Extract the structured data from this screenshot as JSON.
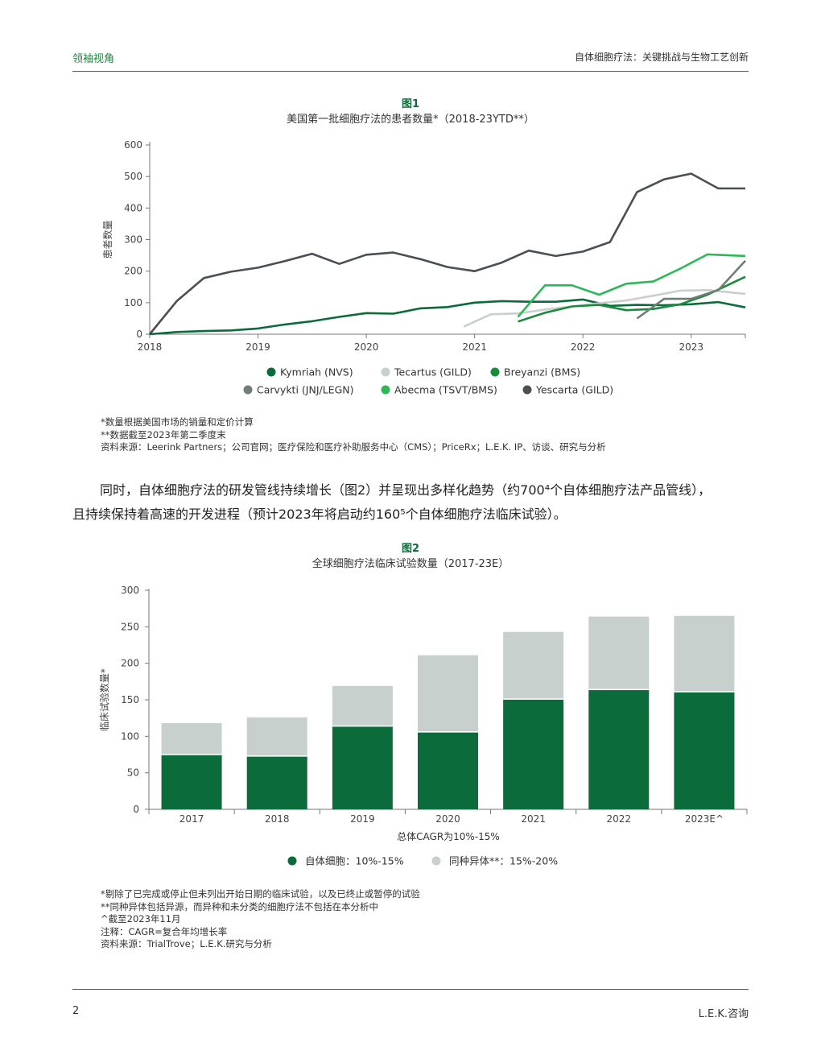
{
  "header": {
    "left": "领袖视角",
    "right": "自体细胞疗法：关键挑战与生物工艺创新"
  },
  "figure1": {
    "label": "图1",
    "title": "美国第一批细胞疗法的患者数量*（2018-23YTD**）",
    "notes": [
      "*数量根据美国市场的销量和定价计算",
      "**数据截至2023年第二季度末",
      "资料来源：Leerink Partners；公司官网；医疗保险和医疗补助服务中心（CMS）；PriceRx；L.E.K. IP、访谈、研究与分析"
    ]
  },
  "paragraph": {
    "line1": "同时，自体细胞疗法的研发管线持续增长（图2）并呈现出多样化趋势（约700⁴个自体细胞疗法产品管线），",
    "line2": "且持续保持着高速的开发进程（预计2023年将启动约160⁵个自体细胞疗法临床试验）。"
  },
  "figure2": {
    "label": "图2",
    "title": "全球细胞疗法临床试验数量（2017-23E）",
    "notes": [
      "*剔除了已完成或停止但未列出开始日期的临床试验，以及已终止或暂停的试验",
      "**同种异体包括异源，而异种和未分类的细胞疗法不包括在本分析中",
      "^截至2023年11月",
      "注释：CAGR=复合年均增长率",
      "资料来源：TrialTrove；L.E.K.研究与分析"
    ]
  },
  "footer": {
    "page": "2",
    "brand": "L.E.K.咨询"
  },
  "chart_data": [
    {
      "type": "line",
      "title": "美国第一批细胞疗法的患者数量*（2018-23YTD**）",
      "ylabel": "患者数量",
      "xlim": [
        2018,
        2023.5
      ],
      "ylim": [
        0,
        600
      ],
      "yticks": [
        0,
        100,
        200,
        300,
        400,
        500,
        600
      ],
      "xticks": [
        "2018",
        "2019",
        "2020",
        "2021",
        "2022",
        "2023"
      ],
      "series": [
        {
          "name": "Yescarta (GILD)",
          "color": "#4a4f54",
          "x": [
            2018,
            2018.25,
            2018.5,
            2018.75,
            2019,
            2019.25,
            2019.5,
            2019.75,
            2020,
            2020.25,
            2020.5,
            2020.75,
            2021,
            2021.25,
            2021.5,
            2021.75,
            2022,
            2022.25,
            2022.5,
            2022.75,
            2023,
            2023.25,
            2023.5
          ],
          "y": [
            0,
            105,
            178,
            198,
            211,
            232,
            255,
            223,
            252,
            259,
            238,
            213,
            200,
            227,
            265,
            248,
            262,
            292,
            451,
            491,
            509,
            462,
            462
          ]
        },
        {
          "name": "Kymriah (NVS)",
          "color": "#0b6b3a",
          "x": [
            2018,
            2018.25,
            2018.5,
            2018.75,
            2019,
            2019.25,
            2019.5,
            2019.75,
            2020,
            2020.25,
            2020.5,
            2020.75,
            2021,
            2021.25,
            2021.5,
            2021.75,
            2022,
            2022.25,
            2022.5,
            2022.75,
            2023,
            2023.25,
            2023.5
          ],
          "y": [
            0,
            7,
            10,
            12,
            18,
            31,
            41,
            55,
            67,
            65,
            82,
            86,
            100,
            105,
            103,
            103,
            110,
            90,
            93,
            92,
            95,
            102,
            85
          ]
        },
        {
          "name": "Tecartus (GILD)",
          "color": "#c9cfcd",
          "x": [
            2020.9,
            2021.15,
            2021.4,
            2021.65,
            2021.9,
            2022.15,
            2022.4,
            2022.65,
            2022.9,
            2023.15,
            2023.5
          ],
          "y": [
            24,
            63,
            66,
            78,
            88,
            98,
            107,
            122,
            138,
            140,
            128
          ]
        },
        {
          "name": "Breyanzi (BMS)",
          "color": "#1a8a3c",
          "x": [
            2021.4,
            2021.65,
            2021.9,
            2022.15,
            2022.4,
            2022.65,
            2022.9,
            2023.15,
            2023.5
          ],
          "y": [
            40,
            68,
            88,
            93,
            76,
            80,
            95,
            125,
            182
          ]
        },
        {
          "name": "Carvykti (JNJ/LEGN)",
          "color": "#6f7d76",
          "x": [
            2022.5,
            2022.75,
            2023,
            2023.25,
            2023.5
          ],
          "y": [
            50,
            112,
            112,
            140,
            233
          ]
        },
        {
          "name": "Abecma (TSVT/BMS)",
          "color": "#2cb857",
          "x": [
            2021.4,
            2021.65,
            2021.9,
            2022.15,
            2022.4,
            2022.65,
            2022.9,
            2023.15,
            2023.5
          ],
          "y": [
            55,
            155,
            155,
            125,
            160,
            167,
            208,
            253,
            248
          ]
        }
      ],
      "legend_order": [
        "Kymriah (NVS)",
        "Tecartus (GILD)",
        "Breyanzi (BMS)",
        "Carvykti (JNJ/LEGN)",
        "Abecma (TSVT/BMS)",
        "Yescarta (GILD)"
      ]
    },
    {
      "type": "bar",
      "stacked": true,
      "title": "全球细胞疗法临床试验数量（2017-23E）",
      "ylabel": "临床试验数量*",
      "xlabel": "总体CAGR为10%-15%",
      "ylim": [
        0,
        300
      ],
      "yticks": [
        0,
        50,
        100,
        150,
        200,
        250,
        300
      ],
      "categories": [
        "2017",
        "2018",
        "2019",
        "2020",
        "2021",
        "2022",
        "2023E^"
      ],
      "series": [
        {
          "name": "自体细胞：10%-15%",
          "color": "#0b6b3a",
          "values": [
            75,
            73,
            114,
            106,
            151,
            164,
            161
          ]
        },
        {
          "name": "同种异体**：15%-20%",
          "color": "#c8d0ce",
          "values": [
            43,
            53,
            55,
            105,
            92,
            100,
            104
          ]
        }
      ]
    }
  ]
}
